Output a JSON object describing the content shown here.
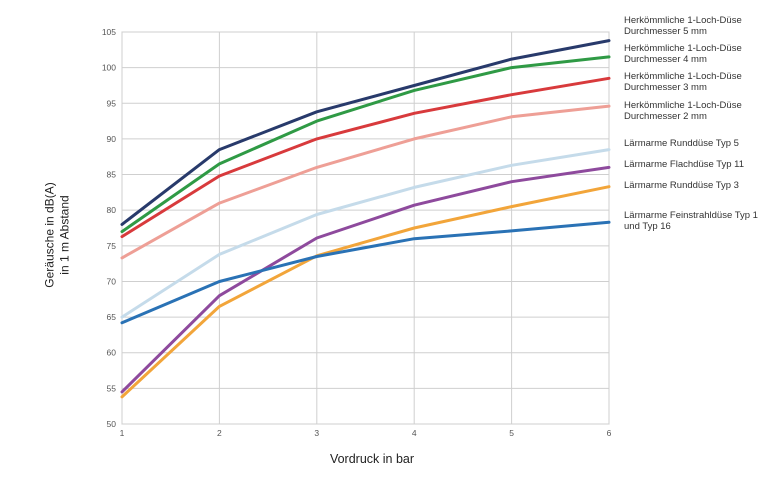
{
  "chart_data": {
    "type": "line",
    "title": "",
    "xlabel": "Vordruck in bar",
    "ylabel": [
      "Geräusche in dB(A)",
      "in 1 m Abstand"
    ],
    "x": [
      1,
      2,
      3,
      4,
      5,
      6
    ],
    "xticks": [
      "1",
      "2",
      "3",
      "4",
      "5",
      "6"
    ],
    "xlim": [
      1,
      6
    ],
    "ylim": [
      50,
      105
    ],
    "yticks": [
      "50",
      "55",
      "60",
      "65",
      "70",
      "75",
      "80",
      "85",
      "90",
      "95",
      "100",
      "105"
    ],
    "grid": true,
    "legend_position": "right",
    "series": [
      {
        "name": "Herkömmliche 1-Loch-Düse Durchmesser 5 mm",
        "label_lines": [
          "Herkömmliche 1-Loch-Düse",
          "Durchmesser 5 mm"
        ],
        "color": "#283a6b",
        "values": [
          78,
          88.5,
          93.8,
          97.5,
          101.2,
          103.8
        ]
      },
      {
        "name": "Herkömmliche 1-Loch-Düse Durchmesser 4 mm",
        "label_lines": [
          "Herkömmliche 1-Loch-Düse",
          "Durchmesser 4 mm"
        ],
        "color": "#2f9a45",
        "values": [
          77,
          86.5,
          92.5,
          96.8,
          100,
          101.5
        ]
      },
      {
        "name": "Herkömmliche 1-Loch-Düse Durchmesser 3 mm",
        "label_lines": [
          "Herkömmliche 1-Loch-Düse",
          "Durchmesser 3 mm"
        ],
        "color": "#d83a3c",
        "values": [
          76.3,
          84.8,
          90,
          93.6,
          96.2,
          98.5
        ]
      },
      {
        "name": "Herkömmliche 1-Loch-Düse Durchmesser 2 mm",
        "label_lines": [
          "Herkömmliche 1-Loch-Düse",
          "Durchmesser 2 mm"
        ],
        "color": "#ee9f96",
        "values": [
          73.3,
          81,
          86,
          90,
          93.1,
          94.6
        ]
      },
      {
        "name": "Lärmarme Runddüse Typ 5",
        "label_lines": [
          "Lärmarme Runddüse Typ 5"
        ],
        "color": "#c5dbea",
        "values": [
          65,
          73.8,
          79.4,
          83.2,
          86.3,
          88.5
        ]
      },
      {
        "name": "Lärmarme Flachdüse Typ 11",
        "label_lines": [
          "Lärmarme Flachdüse Typ 11"
        ],
        "color": "#8e4a9d",
        "values": [
          54.5,
          68,
          76.1,
          80.7,
          84,
          86
        ]
      },
      {
        "name": "Lärmarme Runddüse Typ 3",
        "label_lines": [
          "Lärmarme Runddüse Typ 3"
        ],
        "color": "#f2a53a",
        "values": [
          53.8,
          66.5,
          73.6,
          77.5,
          80.5,
          83.3
        ]
      },
      {
        "name": "Lärmarme Feinstrahldüse Typ 1 und Typ 16",
        "label_lines": [
          "Lärmarme Feinstrahldüse Typ 1",
          "und Typ 16"
        ],
        "color": "#2a72b5",
        "values": [
          64.2,
          70,
          73.5,
          76,
          77.1,
          78.3
        ]
      }
    ]
  }
}
